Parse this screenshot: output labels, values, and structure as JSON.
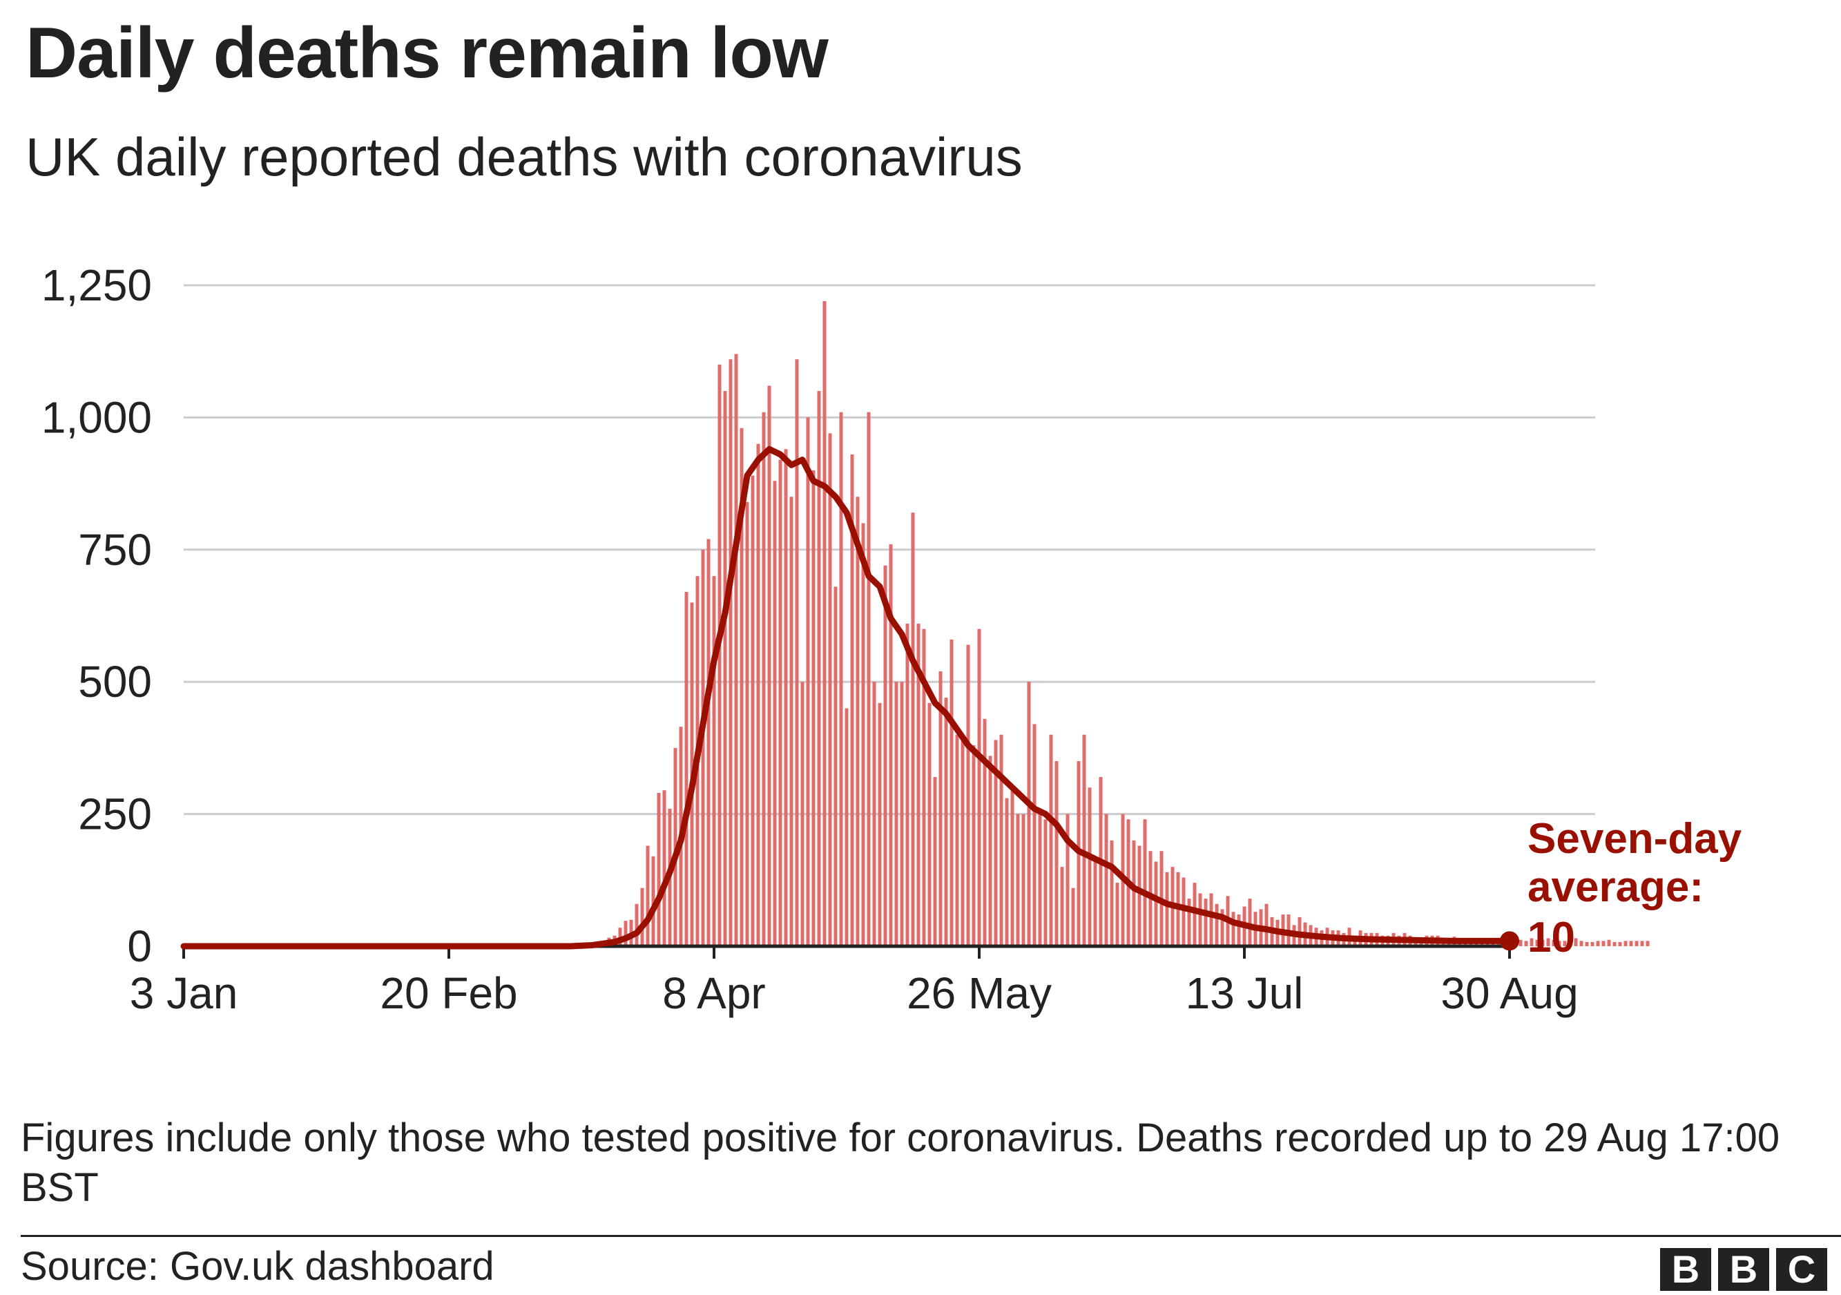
{
  "title": "Daily deaths remain low",
  "subtitle": "UK daily reported deaths with coronavirus",
  "note": "Figures include only those who tested positive for coronavirus. Deaths recorded up to 29 Aug 17:00 BST",
  "source": "Source: Gov.uk dashboard",
  "logo_letters": [
    "B",
    "B",
    "C"
  ],
  "colors": {
    "bar": "#e06b6b",
    "line": "#990f00",
    "grid": "#cccccc",
    "text": "#222222"
  },
  "chart_data": {
    "type": "bar",
    "x_start": "3 Jan",
    "x_end": "30 Aug",
    "ylim": [
      0,
      1250
    ],
    "yticks": [
      0,
      250,
      500,
      750,
      1000,
      1250
    ],
    "ytick_labels": [
      "0",
      "250",
      "500",
      "750",
      "1,000",
      "1,250"
    ],
    "xticks": [
      {
        "label": "3 Jan",
        "day": 0
      },
      {
        "label": "20 Feb",
        "day": 48
      },
      {
        "label": "8 Apr",
        "day": 96
      },
      {
        "label": "26 May",
        "day": 144
      },
      {
        "label": "13 Jul",
        "day": 192
      },
      {
        "label": "30 Aug",
        "day": 240
      }
    ],
    "bars_start_day": 70,
    "bars": [
      1,
      3,
      2,
      5,
      6,
      7,
      10,
      16,
      20,
      35,
      48,
      50,
      80,
      110,
      190,
      170,
      290,
      295,
      260,
      375,
      415,
      670,
      650,
      700,
      750,
      770,
      700,
      1100,
      1050,
      1110,
      1120,
      980,
      840,
      890,
      950,
      1010,
      1060,
      880,
      920,
      940,
      850,
      1110,
      500,
      1000,
      900,
      1050,
      1220,
      970,
      680,
      1010,
      450,
      930,
      850,
      800,
      1010,
      500,
      460,
      720,
      760,
      500,
      500,
      610,
      820,
      610,
      600,
      460,
      320,
      520,
      470,
      580,
      400,
      390,
      570,
      380,
      600,
      430,
      360,
      390,
      400,
      280,
      300,
      250,
      250,
      500,
      420,
      260,
      240,
      400,
      350,
      150,
      250,
      110,
      350,
      400,
      300,
      160,
      320,
      250,
      200,
      120,
      250,
      240,
      200,
      190,
      240,
      180,
      160,
      180,
      140,
      150,
      140,
      130,
      90,
      120,
      100,
      90,
      100,
      80,
      70,
      95,
      65,
      60,
      75,
      90,
      65,
      70,
      80,
      55,
      50,
      60,
      60,
      40,
      55,
      45,
      40,
      35,
      30,
      35,
      30,
      30,
      25,
      35,
      20,
      30,
      25,
      25,
      25,
      20,
      20,
      25,
      20,
      25,
      20,
      15,
      15,
      20,
      20,
      20,
      15,
      15,
      18,
      12,
      15,
      12,
      12,
      10,
      10,
      10,
      12,
      10,
      8,
      10,
      12,
      10,
      15,
      12,
      12,
      15,
      12,
      10,
      10,
      10,
      15,
      10,
      8,
      8,
      10,
      10,
      12,
      8,
      8,
      10,
      10,
      10,
      10,
      10
    ],
    "series": [
      {
        "name": "Seven-day average",
        "points": [
          [
            0,
            0
          ],
          [
            70,
            0
          ],
          [
            74,
            2
          ],
          [
            78,
            8
          ],
          [
            80,
            15
          ],
          [
            82,
            25
          ],
          [
            84,
            50
          ],
          [
            86,
            90
          ],
          [
            88,
            140
          ],
          [
            90,
            200
          ],
          [
            92,
            300
          ],
          [
            94,
            420
          ],
          [
            96,
            540
          ],
          [
            98,
            630
          ],
          [
            100,
            760
          ],
          [
            102,
            890
          ],
          [
            104,
            920
          ],
          [
            106,
            940
          ],
          [
            108,
            930
          ],
          [
            110,
            910
          ],
          [
            112,
            920
          ],
          [
            114,
            880
          ],
          [
            116,
            870
          ],
          [
            118,
            850
          ],
          [
            120,
            820
          ],
          [
            122,
            760
          ],
          [
            124,
            700
          ],
          [
            126,
            680
          ],
          [
            128,
            620
          ],
          [
            130,
            590
          ],
          [
            132,
            540
          ],
          [
            134,
            500
          ],
          [
            136,
            460
          ],
          [
            138,
            440
          ],
          [
            140,
            410
          ],
          [
            142,
            380
          ],
          [
            144,
            360
          ],
          [
            146,
            340
          ],
          [
            148,
            320
          ],
          [
            150,
            300
          ],
          [
            152,
            280
          ],
          [
            154,
            260
          ],
          [
            156,
            250
          ],
          [
            158,
            230
          ],
          [
            160,
            200
          ],
          [
            162,
            180
          ],
          [
            164,
            170
          ],
          [
            166,
            160
          ],
          [
            168,
            150
          ],
          [
            170,
            130
          ],
          [
            172,
            110
          ],
          [
            174,
            100
          ],
          [
            176,
            90
          ],
          [
            178,
            80
          ],
          [
            180,
            75
          ],
          [
            182,
            70
          ],
          [
            184,
            65
          ],
          [
            186,
            60
          ],
          [
            188,
            55
          ],
          [
            190,
            45
          ],
          [
            192,
            40
          ],
          [
            194,
            35
          ],
          [
            196,
            32
          ],
          [
            198,
            28
          ],
          [
            200,
            25
          ],
          [
            202,
            22
          ],
          [
            204,
            20
          ],
          [
            206,
            18
          ],
          [
            210,
            15
          ],
          [
            215,
            13
          ],
          [
            220,
            12
          ],
          [
            225,
            11
          ],
          [
            230,
            10
          ],
          [
            235,
            10
          ],
          [
            240,
            10
          ]
        ]
      }
    ],
    "end_label_lines": [
      "Seven-day",
      "average:",
      "10"
    ]
  }
}
